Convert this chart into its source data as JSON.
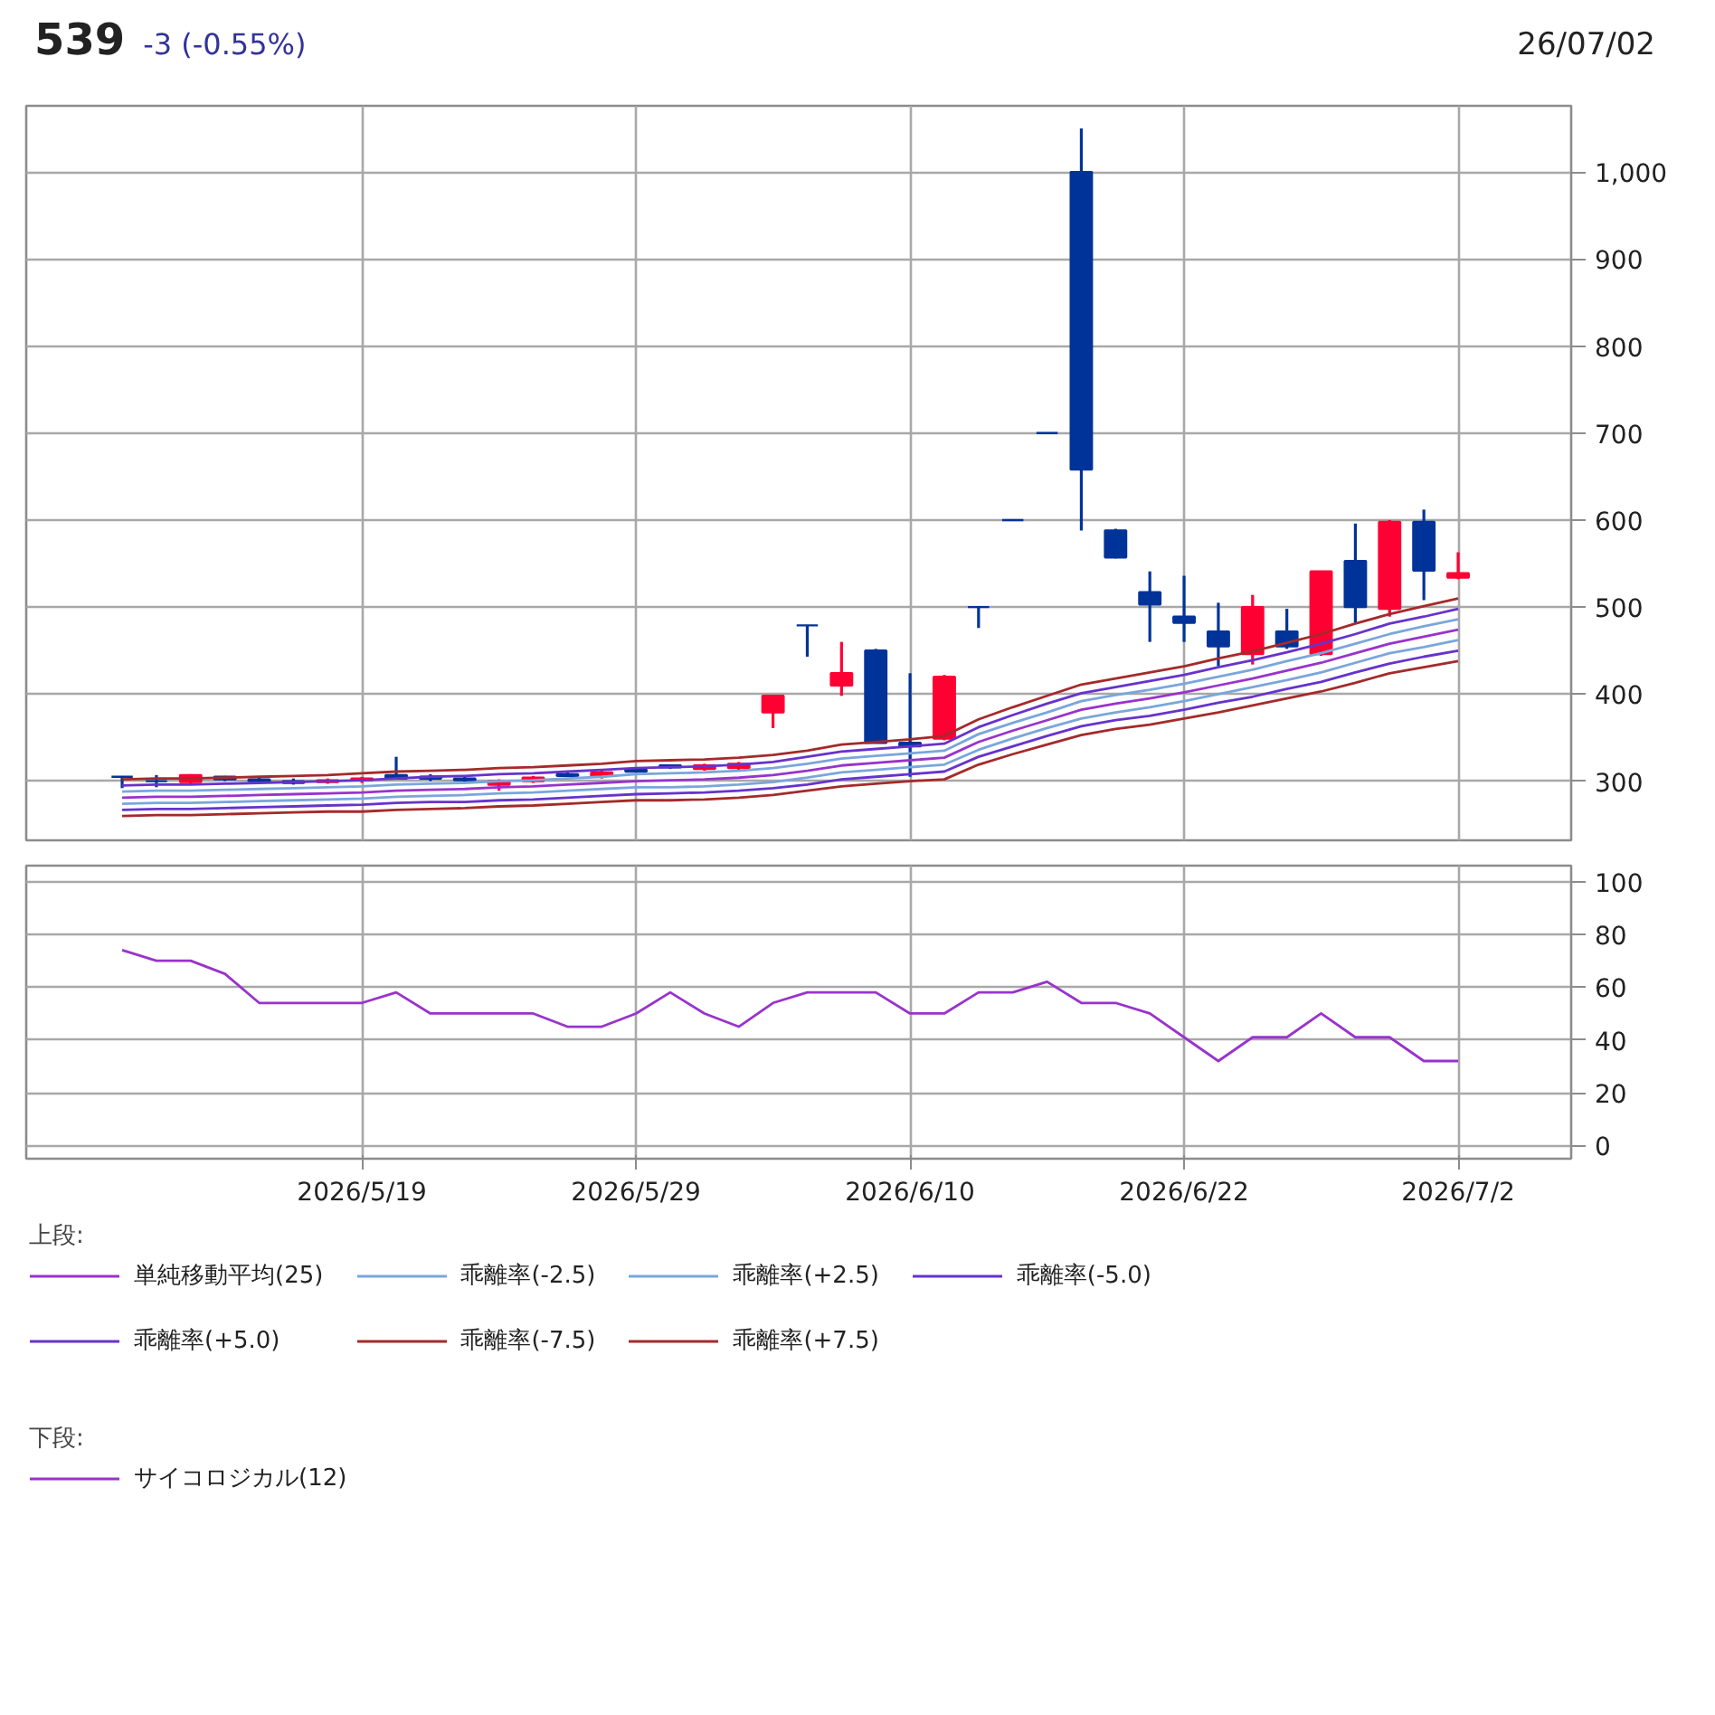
{
  "chart_data": [
    {
      "type": "candlestick",
      "annotations": [
        "539",
        "-3 (-0.55%)",
        "26/07/02"
      ],
      "categories": [
        null,
        null,
        null,
        null,
        null,
        null,
        null,
        "2026/5/19",
        null,
        null,
        null,
        null,
        null,
        null,
        null,
        "2026/5/29",
        null,
        null,
        null,
        null,
        null,
        null,
        null,
        "2026/6/10",
        null,
        null,
        null,
        null,
        null,
        null,
        null,
        "2026/6/22",
        null,
        null,
        null,
        null,
        null,
        null,
        null,
        "2026/7/2"
      ],
      "ohlc": [
        [
          305,
          305,
          292,
          305
        ],
        [
          300,
          307,
          293,
          300
        ],
        [
          299,
          308,
          297,
          307
        ],
        [
          305,
          306,
          300,
          302
        ],
        [
          302,
          304,
          297,
          300
        ],
        [
          300,
          303,
          296,
          298
        ],
        [
          299,
          303,
          297,
          301
        ],
        [
          301,
          305,
          298,
          303
        ],
        [
          307,
          328,
          302,
          303
        ],
        [
          305,
          308,
          300,
          303
        ],
        [
          303,
          306,
          299,
          301
        ],
        [
          296,
          302,
          289,
          300
        ],
        [
          300,
          306,
          298,
          304
        ],
        [
          308,
          310,
          305,
          306
        ],
        [
          306,
          312,
          303,
          310
        ],
        [
          313,
          315,
          310,
          311
        ],
        [
          318,
          319,
          314,
          316
        ],
        [
          314,
          320,
          312,
          318
        ],
        [
          315,
          322,
          313,
          320
        ],
        [
          379,
          399,
          361,
          398
        ],
        [
          479,
          479,
          443,
          479
        ],
        [
          410,
          460,
          398,
          424
        ],
        [
          450,
          452,
          344,
          344
        ],
        [
          344,
          424,
          305,
          340
        ],
        [
          349,
          422,
          347,
          420
        ],
        [
          500,
          500,
          476,
          500
        ],
        [
          600,
          600,
          600,
          600
        ],
        [
          700,
          700,
          700,
          700
        ],
        [
          1000,
          1050,
          588,
          658
        ],
        [
          588,
          590,
          556,
          557
        ],
        [
          517,
          541,
          460,
          503
        ],
        [
          489,
          536,
          460,
          482
        ],
        [
          472,
          505,
          432,
          455
        ],
        [
          446,
          514,
          434,
          500
        ],
        [
          472,
          498,
          452,
          455
        ],
        [
          446,
          541,
          444,
          541
        ],
        [
          553,
          596,
          482,
          500
        ],
        [
          498,
          600,
          489,
          598
        ],
        [
          598,
          612,
          508,
          542
        ],
        [
          534,
          563,
          532,
          539
        ]
      ],
      "colors": [
        "#003399",
        "#003399",
        "#ff0033",
        "#003399",
        "#003399",
        "#003399",
        "#ff0033",
        "#ff0033",
        "#003399",
        "#003399",
        "#003399",
        "#ff0033",
        "#ff0033",
        "#003399",
        "#ff0033",
        "#003399",
        "#003399",
        "#ff0033",
        "#ff0033",
        "#ff0033",
        "#003399",
        "#ff0033",
        "#003399",
        "#003399",
        "#ff0033",
        "#003399",
        "#003399",
        "#003399",
        "#003399",
        "#003399",
        "#003399",
        "#003399",
        "#003399",
        "#ff0033",
        "#003399",
        "#ff0033",
        "#003399",
        "#ff0033",
        "#003399",
        "#ff0033"
      ],
      "series": [
        {
          "type": "line",
          "name": "単純移動平均(25)",
          "color": "#9933cc",
          "values": [
            281,
            282,
            282,
            283,
            284,
            285,
            286,
            287,
            289,
            290,
            291,
            293,
            294,
            296,
            298,
            300,
            301,
            302,
            304,
            307,
            312,
            318,
            321,
            324,
            327,
            345,
            358,
            370,
            382,
            389,
            395,
            402,
            410,
            418,
            427,
            436,
            447,
            458,
            466,
            474
          ]
        },
        {
          "type": "line",
          "name": "乖離率(-2.5)",
          "color": "#7aa6dc",
          "values": [
            274,
            275,
            275,
            276,
            277,
            278,
            279,
            280,
            282,
            283,
            284,
            286,
            287,
            289,
            291,
            293,
            293,
            294,
            296,
            299,
            304,
            310,
            313,
            316,
            319,
            336,
            349,
            361,
            372,
            379,
            385,
            392,
            400,
            408,
            416,
            425,
            436,
            447,
            454,
            462
          ]
        },
        {
          "type": "line",
          "name": "乖離率(+2.5)",
          "color": "#7aa6dc",
          "values": [
            288,
            289,
            289,
            290,
            291,
            292,
            293,
            294,
            296,
            297,
            298,
            300,
            301,
            303,
            305,
            308,
            309,
            310,
            312,
            315,
            320,
            326,
            329,
            332,
            335,
            354,
            367,
            379,
            392,
            399,
            405,
            412,
            420,
            428,
            438,
            447,
            458,
            469,
            478,
            486
          ]
        },
        {
          "type": "line",
          "name": "乖離率(-5.0)",
          "color": "#6633cc",
          "values": [
            267,
            268,
            268,
            269,
            270,
            271,
            272,
            273,
            275,
            276,
            276,
            278,
            279,
            281,
            283,
            285,
            286,
            287,
            289,
            292,
            296,
            302,
            305,
            308,
            311,
            328,
            340,
            352,
            363,
            370,
            375,
            382,
            390,
            397,
            406,
            414,
            425,
            435,
            443,
            450
          ]
        },
        {
          "type": "line",
          "name": "乖離率(+5.0)",
          "color": "#6633cc",
          "values": [
            295,
            296,
            296,
            297,
            298,
            299,
            300,
            301,
            303,
            305,
            306,
            308,
            309,
            311,
            313,
            315,
            316,
            317,
            319,
            322,
            328,
            334,
            337,
            340,
            343,
            362,
            376,
            389,
            401,
            408,
            415,
            422,
            431,
            439,
            448,
            458,
            469,
            481,
            489,
            498
          ]
        },
        {
          "type": "line",
          "name": "乖離率(-7.5)",
          "color": "#a52a2a",
          "values": [
            260,
            261,
            261,
            262,
            263,
            264,
            265,
            265,
            267,
            268,
            269,
            271,
            272,
            274,
            276,
            278,
            278,
            279,
            281,
            284,
            289,
            294,
            297,
            300,
            302,
            319,
            331,
            342,
            353,
            360,
            365,
            372,
            379,
            387,
            395,
            403,
            413,
            424,
            431,
            438
          ]
        },
        {
          "type": "line",
          "name": "乖離率(+7.5)",
          "color": "#a52a2a",
          "values": [
            302,
            303,
            303,
            304,
            305,
            306,
            307,
            309,
            311,
            312,
            313,
            315,
            316,
            318,
            320,
            323,
            324,
            325,
            327,
            330,
            335,
            342,
            345,
            348,
            352,
            371,
            385,
            398,
            411,
            418,
            425,
            432,
            441,
            449,
            459,
            469,
            481,
            492,
            501,
            510
          ]
        }
      ],
      "ylim": [
        232,
        1076
      ],
      "yticks": [
        300,
        400,
        500,
        600,
        700,
        800,
        900,
        {
          "value": 1000,
          "label": "1,000"
        }
      ],
      "grid": true,
      "tick_labels": "y",
      "legend": "bottom",
      "legend_title": "上段:"
    },
    {
      "type": "line",
      "categories": [
        null,
        null,
        null,
        null,
        null,
        null,
        null,
        "2026/5/19",
        null,
        null,
        null,
        null,
        null,
        null,
        null,
        "2026/5/29",
        null,
        null,
        null,
        null,
        null,
        null,
        null,
        "2026/6/10",
        null,
        null,
        null,
        null,
        null,
        null,
        null,
        "2026/6/22",
        null,
        null,
        null,
        null,
        null,
        null,
        null,
        "2026/7/2"
      ],
      "series": [
        {
          "name": "サイコロジカル(12)",
          "color": "#9933cc",
          "values": [
            74,
            70,
            70,
            65,
            54,
            54,
            54,
            54,
            58,
            50,
            50,
            50,
            50,
            45,
            45,
            50,
            58,
            50,
            45,
            54,
            58,
            58,
            58,
            50,
            50,
            58,
            58,
            62,
            54,
            54,
            50,
            41,
            32,
            41,
            41,
            50,
            41,
            41,
            32,
            32
          ]
        }
      ],
      "ylim": [
        -5,
        106
      ],
      "yticks": [
        0,
        20,
        40,
        60,
        80,
        100
      ],
      "grid": true,
      "legend": "bottom",
      "legend_title": "下段:"
    }
  ]
}
